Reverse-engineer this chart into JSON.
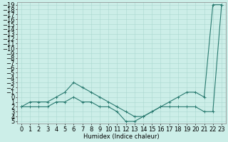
{
  "xlabel": "Humidex (Indice chaleur)",
  "x": [
    0,
    1,
    2,
    3,
    4,
    5,
    6,
    7,
    8,
    9,
    10,
    11,
    12,
    13,
    14,
    15,
    16,
    17,
    18,
    19,
    20,
    21,
    22,
    23
  ],
  "y_upper": [
    2,
    2,
    2,
    2,
    1,
    1,
    0,
    1,
    1,
    2,
    2,
    3,
    5,
    5,
    4,
    3,
    2,
    2,
    2,
    2,
    2,
    3,
    3,
    -19
  ],
  "y_lower": [
    2,
    1,
    1,
    1,
    0,
    -1,
    -3,
    -2,
    -1,
    0,
    1,
    2,
    3,
    4,
    4,
    3,
    2,
    1,
    0,
    -1,
    -1,
    0,
    -19,
    -19
  ],
  "line_color": "#2a7a70",
  "bg_color": "#cceee8",
  "grid_color": "#aad8d0",
  "ylim_min": -19.5,
  "ylim_max": 5.5,
  "xlim_min": -0.5,
  "xlim_max": 23.5,
  "yticks": [
    5,
    4,
    3,
    2,
    1,
    0,
    -1,
    -2,
    -3,
    -4,
    -5,
    -6,
    -7,
    -8,
    -9,
    -10,
    -11,
    -12,
    -13,
    -14,
    -15,
    -16,
    -17,
    -18,
    -19
  ],
  "xticks": [
    0,
    1,
    2,
    3,
    4,
    5,
    6,
    7,
    8,
    9,
    10,
    11,
    12,
    13,
    14,
    15,
    16,
    17,
    18,
    19,
    20,
    21,
    22,
    23
  ],
  "marker": "+",
  "markersize": 3,
  "linewidth": 0.8,
  "font_size": 6
}
